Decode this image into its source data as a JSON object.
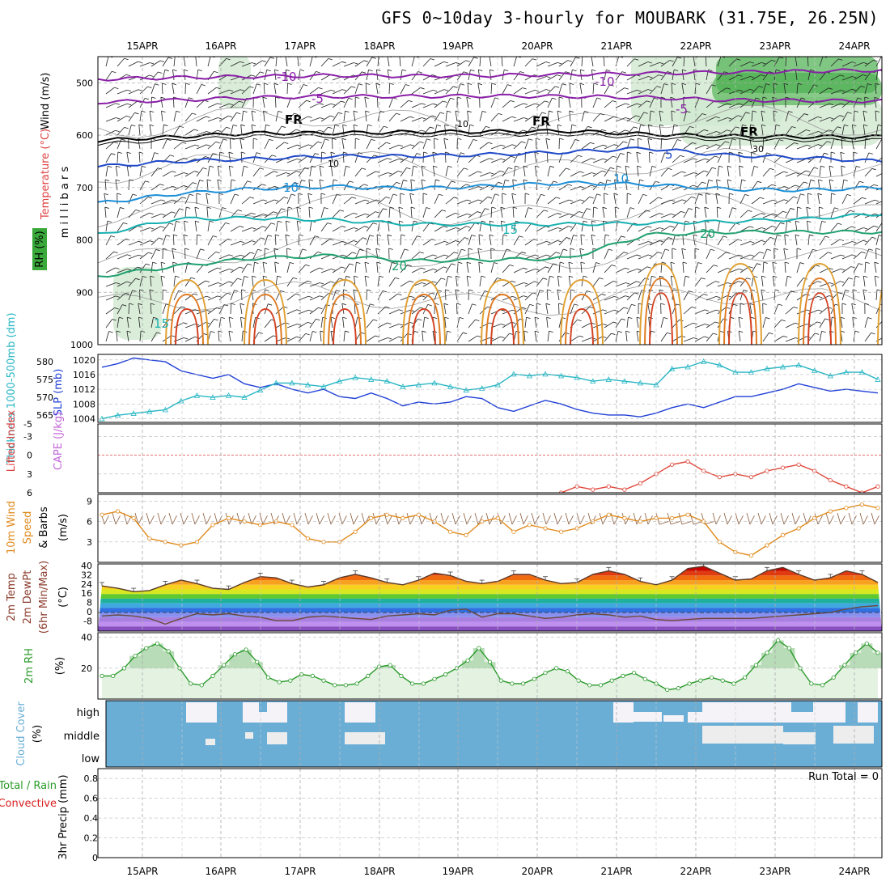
{
  "header": {
    "title": "GFS 0~10day 3-hourly for MOUBARK (31.75E, 26.25N)"
  },
  "colors": {
    "slp": "#1f3fd6",
    "thickness": "#27b6c4",
    "cape": "#c266d9",
    "lifted": "#e0463a",
    "wind": "#e08a1c",
    "rh": "#2a9a2a",
    "cloud": "#6aaed6",
    "cloud_gap": "#ededed",
    "rain": "#d92020",
    "total": "#2a9a2a"
  },
  "chart_data": [
    {
      "type": "heatmap",
      "panel": "upper-air cross section",
      "dates": [
        "15APR",
        "16APR",
        "17APR",
        "18APR",
        "19APR",
        "20APR",
        "21APR",
        "22APR",
        "23APR",
        "24APR"
      ],
      "ylabel": "millibars",
      "y_ticks": [
        "500",
        "600",
        "700",
        "800",
        "900",
        "1000"
      ],
      "ylim": [
        450,
        1000
      ],
      "side_labels": [
        "Wind (m/s)",
        "Temperature (°C)",
        "RH (%)"
      ],
      "isotherms": [
        {
          "label": "-10",
          "pressure": [
            493,
            490,
            488,
            486,
            487,
            486,
            484,
            482,
            480,
            478,
            476
          ],
          "color": "#8a1fa8"
        },
        {
          "label": "-5",
          "pressure": [
            537,
            533,
            528,
            526,
            526,
            525,
            526,
            528,
            533,
            534,
            535
          ],
          "color": "#8a1fa8"
        },
        {
          "label": "FR",
          "pressure": [
            610,
            603,
            596,
            596,
            594,
            593,
            592,
            598,
            602,
            603,
            603
          ],
          "color": "#000000"
        },
        {
          "label": "-5 (upper)",
          "pressure": [
            660,
            650,
            645,
            640,
            640,
            637,
            632,
            625,
            638,
            643,
            650
          ],
          "color": "#1f49c9"
        },
        {
          "label": "10",
          "pressure": [
            730,
            712,
            702,
            698,
            702,
            697,
            691,
            694,
            703,
            705,
            700
          ],
          "color": "#1b8fd8"
        },
        {
          "label": "15",
          "pressure": [
            790,
            760,
            758,
            762,
            770,
            770,
            770,
            768,
            765,
            760,
            750
          ],
          "color": "#17b0b0"
        },
        {
          "label": "20",
          "pressure": [
            870,
            850,
            835,
            830,
            840,
            838,
            835,
            790,
            785,
            785,
            785
          ],
          "color": "#1fa070"
        }
      ],
      "contour_labels": [
        "-10",
        "-5",
        "FR",
        "5",
        "10",
        "15",
        "20",
        "15",
        "10",
        "30"
      ]
    },
    {
      "type": "line",
      "panel": "SLP and thickness",
      "ylabel_left": "Thickness 1000-500mb (dm)",
      "ylabel_right": "SLP (mb)",
      "left_ticks": [
        "580",
        "575",
        "570",
        "565"
      ],
      "right_ticks": [
        "1020",
        "1016",
        "1012",
        "1008",
        "1004"
      ],
      "series": [
        {
          "name": "SLP (mb)",
          "values": [
            1018,
            1019,
            1020.5,
            1020,
            1019.5,
            1017,
            1016,
            1015,
            1016,
            1013.5,
            1012.5,
            1013.5,
            1012,
            1011,
            1012,
            1010,
            1009.5,
            1011,
            1009.5,
            1007.5,
            1008.5,
            1008,
            1008.5,
            1010,
            1009.5,
            1007,
            1006,
            1007.5,
            1009,
            1008,
            1006.5,
            1005.5,
            1005,
            1005,
            1004.5,
            1005.5,
            1007,
            1008,
            1007,
            1008.5,
            1010,
            1010,
            1011,
            1012,
            1013.5,
            1012.5,
            1011.5,
            1012,
            1011.5,
            1011
          ]
        },
        {
          "name": "Thickness (dm)",
          "values": [
            564,
            565,
            565.5,
            566,
            566.5,
            569,
            570.5,
            570,
            570.5,
            570,
            572,
            574,
            574,
            573.5,
            573,
            574.5,
            575.5,
            575,
            574.5,
            573,
            573.5,
            574,
            573,
            572,
            572.5,
            573.5,
            576.5,
            576,
            576.5,
            576,
            575.5,
            574.5,
            575,
            574.5,
            574,
            573.5,
            578,
            578.5,
            580,
            579,
            577,
            577,
            578,
            578.5,
            579,
            577.5,
            576,
            577,
            577,
            575
          ]
        }
      ]
    },
    {
      "type": "line",
      "panel": "CAPE and Lifted Index",
      "ylabel": "CAPE (J/kg) Lifted Index",
      "y_ticks": [
        "-5",
        "-3",
        "0",
        "3",
        "6"
      ],
      "ylim": [
        -5,
        6
      ],
      "series": [
        {
          "name": "Lifted Index",
          "values": [
            null,
            null,
            null,
            null,
            null,
            null,
            null,
            null,
            null,
            null,
            null,
            null,
            null,
            null,
            null,
            null,
            null,
            null,
            null,
            null,
            null,
            null,
            null,
            null,
            null,
            null,
            null,
            null,
            null,
            6,
            5,
            5.5,
            5,
            5.5,
            4.5,
            3,
            1.5,
            1,
            2.5,
            3.5,
            3,
            3.5,
            2.5,
            2,
            1.5,
            2.5,
            4,
            5,
            6,
            5
          ]
        }
      ]
    },
    {
      "type": "line",
      "panel": "10m Wind Speed & Barbs",
      "ylabel": "10m Wind Speed & Barbs (m/s)",
      "y_ticks": [
        "9",
        "6",
        "3"
      ],
      "ylim": [
        0,
        10
      ],
      "series": [
        {
          "name": "10m Wind Speed",
          "values": [
            7,
            7.5,
            6.5,
            3.5,
            3,
            2.5,
            3,
            5.5,
            6.5,
            6,
            5.5,
            6,
            5.5,
            3.5,
            3,
            3,
            4.5,
            6.5,
            7,
            6.5,
            7,
            6,
            4.5,
            4,
            6,
            6.5,
            4.5,
            5.5,
            5,
            4.5,
            5,
            6,
            7,
            6.5,
            6,
            6.5,
            6.5,
            7,
            6,
            3,
            1.5,
            1,
            2.5,
            4,
            5,
            6.5,
            7.5,
            8,
            8.5,
            8
          ]
        }
      ]
    },
    {
      "type": "area",
      "panel": "2m Temp / DewPt",
      "ylabel": "2m Temp 2m DewPt (6hr Min/Max) (°C)",
      "y_ticks": [
        "40",
        "32",
        "24",
        "16",
        "8",
        "0",
        "-8"
      ],
      "ylim": [
        -16,
        42
      ],
      "series": [
        {
          "name": "2m Temp",
          "values": [
            23,
            21,
            18,
            19,
            24,
            28,
            25,
            21,
            20,
            26,
            31,
            30,
            25,
            22,
            24,
            30,
            33,
            30,
            26,
            24,
            28,
            34,
            32,
            27,
            25,
            27,
            33,
            33,
            28,
            25,
            26,
            33,
            36,
            33,
            27,
            24,
            28,
            38,
            40,
            34,
            28,
            29,
            36,
            39,
            33,
            28,
            30,
            36,
            33,
            26
          ]
        },
        {
          "name": "2m DewPt",
          "values": [
            -3,
            -2,
            -3,
            -5,
            -10,
            -5,
            -1,
            -2,
            -1,
            -3,
            -4,
            -7,
            -7,
            -4,
            -3,
            -4,
            -5,
            -6,
            -3,
            -2,
            -1,
            -2,
            2,
            3,
            -4,
            -1,
            -1,
            -3,
            -5,
            -4,
            -2,
            -1,
            -2,
            -4,
            -3,
            -6,
            -7,
            -6,
            -5,
            -5,
            -5,
            -5,
            -4,
            -3,
            -2,
            -1,
            0,
            3,
            5,
            6
          ]
        }
      ]
    },
    {
      "type": "area",
      "panel": "2m RH",
      "ylabel": "2m RH (%)",
      "y_ticks": [
        "40",
        "20"
      ],
      "ylim": [
        0,
        43
      ],
      "series": [
        {
          "name": "2m RH",
          "values": [
            15,
            15,
            20,
            28,
            33,
            36,
            31,
            20,
            10,
            9,
            15,
            22,
            29,
            32,
            24,
            14,
            11,
            12,
            16,
            15,
            12,
            9,
            9,
            10,
            15,
            21,
            22,
            15,
            10,
            10,
            13,
            16,
            20,
            25,
            33,
            24,
            12,
            10,
            10,
            13,
            17,
            20,
            18,
            12,
            9,
            9,
            12,
            15,
            17,
            13,
            10,
            6,
            7,
            10,
            12,
            14,
            12,
            10,
            14,
            22,
            30,
            38,
            33,
            20,
            10,
            9,
            14,
            22,
            30,
            36,
            30
          ]
        }
      ]
    },
    {
      "type": "heatmap",
      "panel": "Cloud Cover",
      "ylabel": "Cloud Cover (%)",
      "y_ticks": [
        "high",
        "middle",
        "low"
      ],
      "rows": [
        "high",
        "middle",
        "low"
      ]
    },
    {
      "type": "bar",
      "panel": "3hr Precip",
      "ylabel": "3hr Precip (mm)",
      "side_labels": [
        "Total / Rain",
        "Convective"
      ],
      "y_ticks": [
        "0.8",
        "0.6",
        "0.4",
        "0.2",
        "0"
      ],
      "ylim": [
        0,
        0.9
      ],
      "annotation": "Run Total = 0",
      "values": []
    }
  ]
}
